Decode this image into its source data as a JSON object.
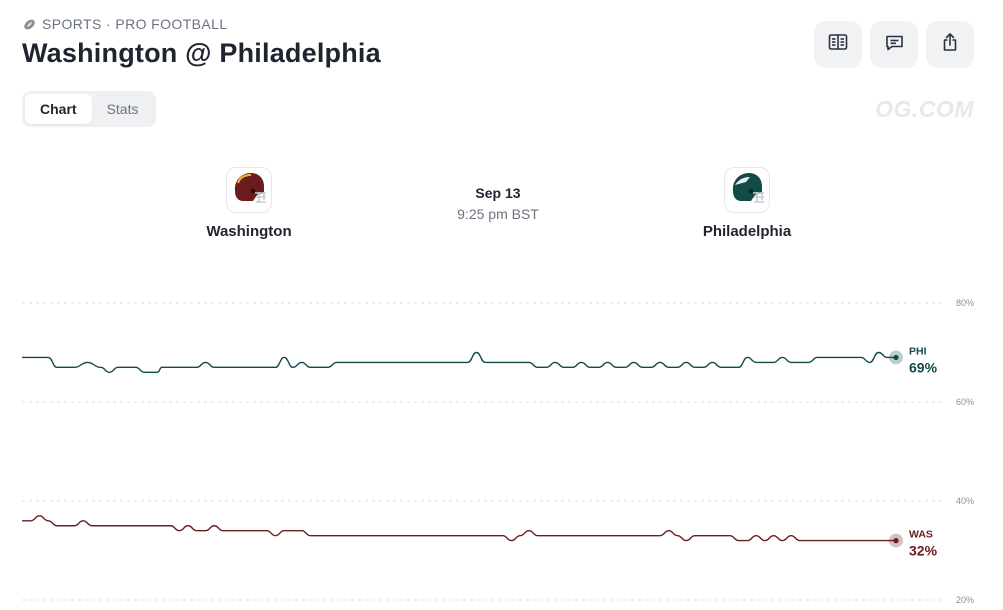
{
  "header": {
    "category": "SPORTS · PRO FOOTBALL",
    "title": "Washington @ Philadelphia",
    "watermark": "OG.COM",
    "tools": [
      "book-icon",
      "comment-icon",
      "share-icon"
    ]
  },
  "tabs": [
    {
      "label": "Chart",
      "active": true
    },
    {
      "label": "Stats",
      "active": false
    }
  ],
  "matchup": {
    "away": {
      "name": "Washington",
      "color": "#6b1c1f",
      "icon": "helmet-icon"
    },
    "home": {
      "name": "Philadelphia",
      "color": "#124a4a",
      "icon": "helmet-icon"
    },
    "date": "Sep 13",
    "time": "9:25 pm BST"
  },
  "chart_data": {
    "type": "line",
    "y_ticks": [
      80,
      60,
      40,
      20
    ],
    "y_tick_labels": [
      "80%",
      "60%",
      "40%",
      "20%"
    ],
    "ylim": [
      20,
      80
    ],
    "grid": true,
    "x_range": [
      0,
      100
    ],
    "series": [
      {
        "name": "PHI",
        "color": "#124a4a",
        "last_label": "69%",
        "points": [
          [
            0,
            69
          ],
          [
            3,
            69
          ],
          [
            4,
            67
          ],
          [
            6,
            67
          ],
          [
            7.5,
            68
          ],
          [
            9,
            67
          ],
          [
            10,
            66
          ],
          [
            11,
            67
          ],
          [
            13,
            67
          ],
          [
            14,
            66
          ],
          [
            15.5,
            66
          ],
          [
            16,
            67
          ],
          [
            20,
            67
          ],
          [
            21,
            68
          ],
          [
            22,
            67
          ],
          [
            29,
            67
          ],
          [
            30,
            69
          ],
          [
            31,
            67
          ],
          [
            32,
            68
          ],
          [
            33,
            67
          ],
          [
            35,
            67
          ],
          [
            36,
            68
          ],
          [
            51,
            68
          ],
          [
            52,
            70
          ],
          [
            53,
            68
          ],
          [
            58,
            68
          ],
          [
            59,
            67
          ],
          [
            60,
            67
          ],
          [
            61,
            68
          ],
          [
            62,
            67
          ],
          [
            63,
            67
          ],
          [
            64,
            68
          ],
          [
            65,
            67
          ],
          [
            66,
            67
          ],
          [
            67,
            68
          ],
          [
            68,
            67
          ],
          [
            69,
            67
          ],
          [
            70,
            68
          ],
          [
            71,
            67
          ],
          [
            72,
            67
          ],
          [
            73,
            68
          ],
          [
            74,
            67
          ],
          [
            75,
            67
          ],
          [
            76,
            68
          ],
          [
            77,
            67
          ],
          [
            78,
            67
          ],
          [
            79,
            68
          ],
          [
            80,
            67
          ],
          [
            82,
            67
          ],
          [
            83,
            69
          ],
          [
            84,
            68
          ],
          [
            86,
            68
          ],
          [
            87,
            69
          ],
          [
            88,
            68
          ],
          [
            90,
            68
          ],
          [
            91,
            69
          ],
          [
            96,
            69
          ],
          [
            97,
            68
          ],
          [
            98,
            70
          ],
          [
            99,
            69
          ],
          [
            100,
            69
          ]
        ]
      },
      {
        "name": "WAS",
        "color": "#6b1c1f",
        "last_label": "32%",
        "points": [
          [
            0,
            36
          ],
          [
            1,
            36
          ],
          [
            2,
            37
          ],
          [
            3,
            36
          ],
          [
            4,
            35
          ],
          [
            6,
            35
          ],
          [
            7,
            36
          ],
          [
            8,
            35
          ],
          [
            10,
            35
          ],
          [
            17,
            35
          ],
          [
            18,
            34
          ],
          [
            19,
            35
          ],
          [
            20,
            34
          ],
          [
            21,
            34
          ],
          [
            22,
            35
          ],
          [
            23,
            34
          ],
          [
            28,
            34
          ],
          [
            29,
            33
          ],
          [
            30,
            34
          ],
          [
            32,
            34
          ],
          [
            33,
            33
          ],
          [
            55,
            33
          ],
          [
            56,
            32
          ],
          [
            57,
            33
          ],
          [
            58,
            34
          ],
          [
            59,
            33
          ],
          [
            73,
            33
          ],
          [
            74,
            34
          ],
          [
            75,
            33
          ],
          [
            76,
            32
          ],
          [
            77,
            33
          ],
          [
            81,
            33
          ],
          [
            82,
            32
          ],
          [
            83,
            32
          ],
          [
            84,
            33
          ],
          [
            85,
            32
          ],
          [
            86,
            33
          ],
          [
            87,
            32
          ],
          [
            88,
            33
          ],
          [
            89,
            32
          ],
          [
            100,
            32
          ]
        ]
      }
    ]
  }
}
